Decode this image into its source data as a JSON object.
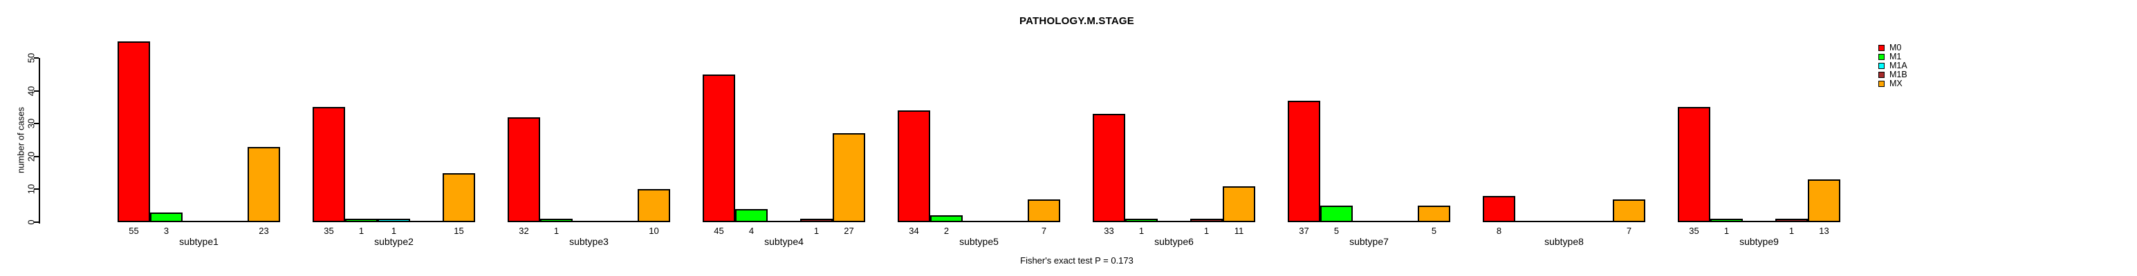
{
  "title": "PATHOLOGY.M.STAGE",
  "footer": "Fisher's exact test P = 0.173",
  "chart_data": {
    "type": "bar",
    "title": "PATHOLOGY.M.STAGE",
    "xlabel": "",
    "ylabel": "number of cases",
    "ylim": [
      0,
      57
    ],
    "yticks": [
      0,
      10,
      20,
      30,
      40,
      50
    ],
    "grid": false,
    "legend_position": "top-right",
    "bar_value_labels": "shown under each bar when value > 0",
    "categories": [
      "subtype1",
      "subtype2",
      "subtype3",
      "subtype4",
      "subtype5",
      "subtype6",
      "subtype7",
      "subtype8",
      "subtype9"
    ],
    "series": [
      {
        "name": "M0",
        "color": "#FF0000",
        "values": [
          55,
          35,
          32,
          45,
          34,
          33,
          37,
          8,
          35
        ]
      },
      {
        "name": "M1",
        "color": "#00FF00",
        "values": [
          3,
          1,
          1,
          4,
          2,
          1,
          5,
          0,
          1
        ]
      },
      {
        "name": "M1A",
        "color": "#00FFFF",
        "values": [
          0,
          1,
          0,
          0,
          0,
          0,
          0,
          0,
          0
        ]
      },
      {
        "name": "M1B",
        "color": "#A52A2A",
        "values": [
          0,
          0,
          0,
          1,
          0,
          1,
          0,
          0,
          1
        ]
      },
      {
        "name": "MX",
        "color": "#FFA500",
        "values": [
          23,
          15,
          10,
          27,
          7,
          11,
          5,
          7,
          13
        ]
      }
    ],
    "annotation": "Fisher's exact test P = 0.173"
  }
}
